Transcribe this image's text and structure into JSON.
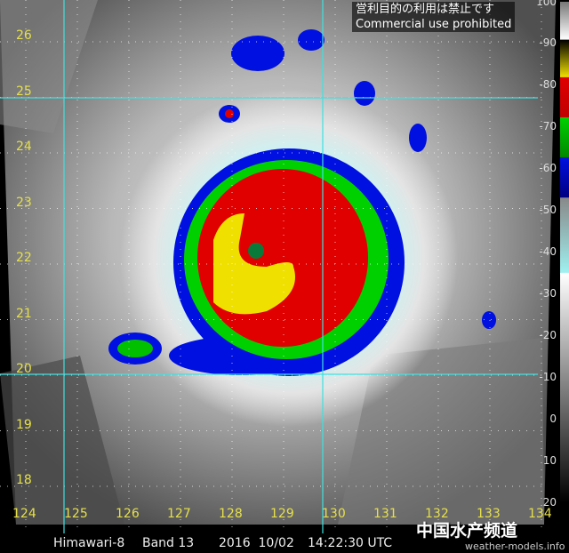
{
  "notice": {
    "japanese": "営利目的の利用は禁止です",
    "english": "Commercial use prohibited"
  },
  "latitude_labels": [
    "26",
    "25",
    "24",
    "23",
    "22",
    "21",
    "20",
    "19",
    "18"
  ],
  "longitude_labels": [
    "124",
    "125",
    "126",
    "127",
    "128",
    "129",
    "130",
    "131",
    "132",
    "133",
    "134"
  ],
  "colorbar": {
    "ticks": [
      "100",
      "-90",
      "-80",
      "-70",
      "-60",
      "-50",
      "-40",
      "-30",
      "-20",
      "-10",
      "0",
      "10",
      "20"
    ],
    "colors": {
      "yellow": "#f0e000",
      "red": "#e00000",
      "green": "#00d000",
      "blue": "#0010e0",
      "cyan": "#a0f0f0"
    }
  },
  "footer": {
    "satellite": "Himawari-8",
    "band": "Band 13",
    "date": "2016  10/02",
    "time": "14:22:30 UTC"
  },
  "watermark": {
    "channel": "中国水产频道",
    "site": "weather-models.info"
  },
  "grid_color": "#40e0e0"
}
